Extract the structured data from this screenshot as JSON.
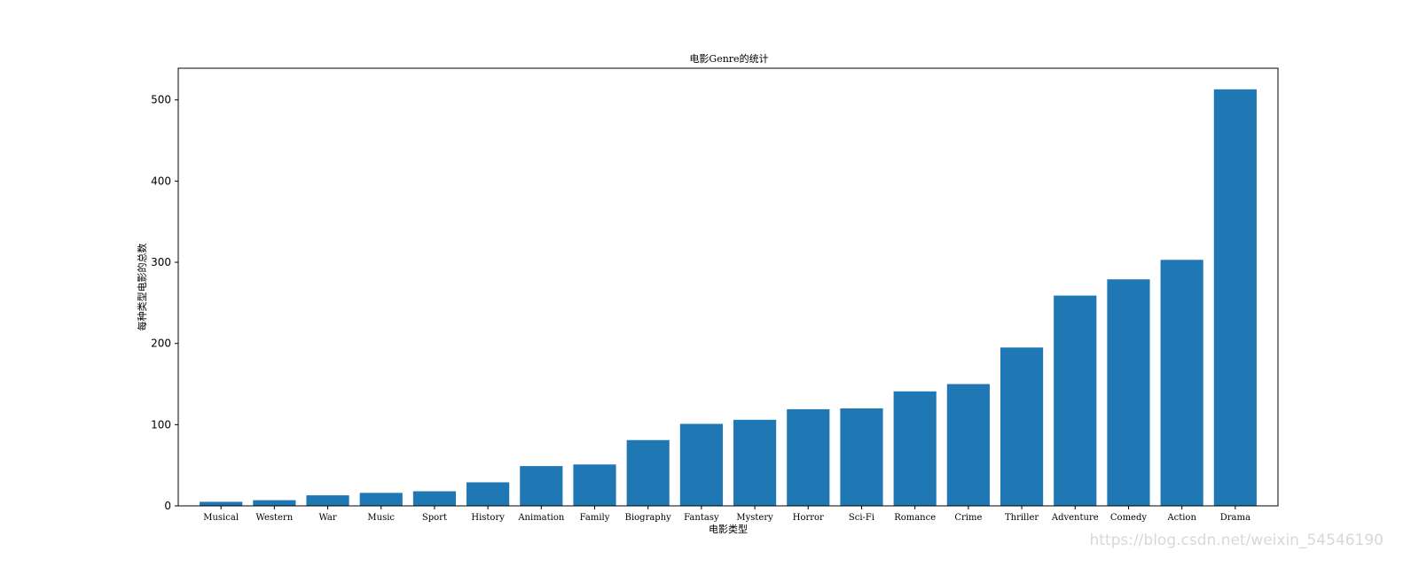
{
  "chart_data": {
    "type": "bar",
    "title": "电影Genre的统计",
    "xlabel": "电影类型",
    "ylabel": "每种类型电影的总数",
    "categories": [
      "Musical",
      "Western",
      "War",
      "Music",
      "Sport",
      "History",
      "Animation",
      "Family",
      "Biography",
      "Fantasy",
      "Mystery",
      "Horror",
      "Sci-Fi",
      "Romance",
      "Crime",
      "Thriller",
      "Adventure",
      "Comedy",
      "Action",
      "Drama"
    ],
    "values": [
      5,
      7,
      13,
      16,
      18,
      29,
      49,
      51,
      81,
      101,
      106,
      119,
      120,
      141,
      150,
      195,
      259,
      279,
      303,
      513
    ],
    "ylim": [
      0,
      539
    ],
    "yticks": [
      0,
      100,
      200,
      300,
      400,
      500
    ],
    "grid": false,
    "bar_color": "#1f77b4"
  },
  "watermark": "https://blog.csdn.net/weixin_54546190"
}
